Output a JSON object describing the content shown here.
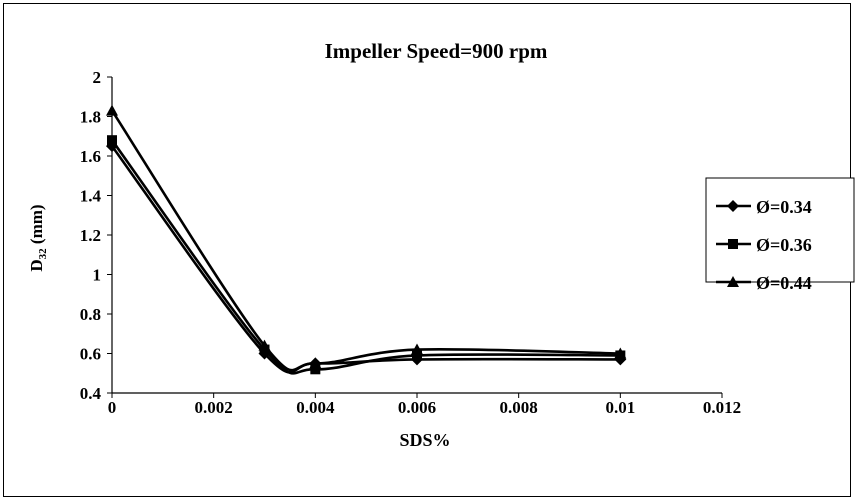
{
  "chart_data": {
    "type": "line",
    "title": "Impeller Speed=900 rpm",
    "xlabel": "SDS%",
    "ylabel": {
      "base": "D",
      "subscript": "32",
      "suffix": " (mm)"
    },
    "xlim": [
      0,
      0.012
    ],
    "ylim": [
      0.4,
      2
    ],
    "x_ticks": [
      "0",
      "0.002",
      "0.004",
      "0.006",
      "0.008",
      "0.01",
      "0.012"
    ],
    "y_ticks": [
      "0.4",
      "0.6",
      "0.8",
      "1",
      "1.2",
      "1.4",
      "1.6",
      "1.8",
      "2"
    ],
    "grid": false,
    "legend_position": "right",
    "x": [
      0,
      0.003,
      0.004,
      0.006,
      0.01
    ],
    "series": [
      {
        "name": "Ø=0.34",
        "marker": "diamond",
        "values": [
          1.65,
          0.6,
          0.55,
          0.57,
          0.57
        ]
      },
      {
        "name": "Ø=0.36",
        "marker": "square",
        "values": [
          1.68,
          0.62,
          0.52,
          0.59,
          0.59
        ]
      },
      {
        "name": "Ø=0.44",
        "marker": "triangle",
        "values": [
          1.83,
          0.64,
          0.55,
          0.62,
          0.6
        ]
      }
    ],
    "colors": {
      "line": "#000000",
      "background": "#ffffff"
    }
  }
}
